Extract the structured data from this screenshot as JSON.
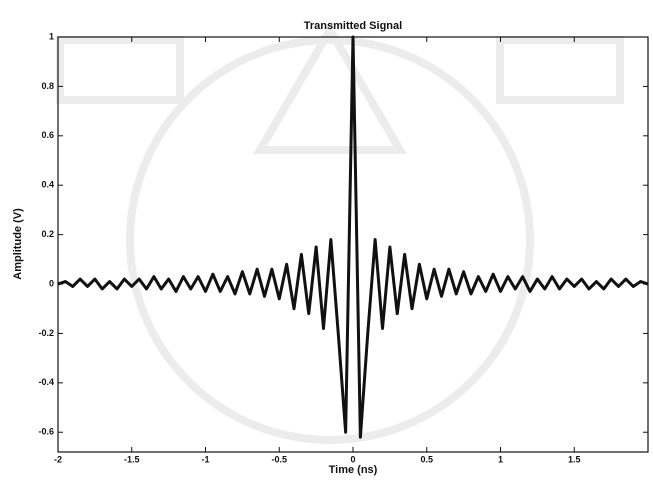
{
  "chart_data": {
    "type": "line",
    "title": "Transmitted Signal",
    "xlabel": "Time (ns)",
    "ylabel": "Amplitude (V)",
    "x": [
      -2,
      -1.95,
      -1.9,
      -1.85,
      -1.8,
      -1.75,
      -1.7,
      -1.65,
      -1.6,
      -1.55,
      -1.5,
      -1.45,
      -1.4,
      -1.35,
      -1.3,
      -1.25,
      -1.2,
      -1.15,
      -1.1,
      -1.05,
      -1,
      -0.95,
      -0.9,
      -0.85,
      -0.8,
      -0.75,
      -0.7,
      -0.65,
      -0.6,
      -0.55,
      -0.5,
      -0.45,
      -0.4,
      -0.35,
      -0.3,
      -0.25,
      -0.2,
      -0.15,
      -0.1,
      -0.05,
      0,
      0.05,
      0.1,
      0.15,
      0.2,
      0.25,
      0.3,
      0.35,
      0.4,
      0.45,
      0.5,
      0.55,
      0.6,
      0.65,
      0.7,
      0.75,
      0.8,
      0.85,
      0.9,
      0.95,
      1,
      1.05,
      1.1,
      1.15,
      1.2,
      1.25,
      1.3,
      1.35,
      1.4,
      1.45,
      1.5,
      1.55,
      1.6,
      1.65,
      1.7,
      1.75,
      1.8,
      1.85,
      1.9,
      1.95,
      2
    ],
    "values": [
      0,
      0.01,
      -0.01,
      0.02,
      -0.01,
      0.02,
      -0.02,
      0.01,
      -0.02,
      0.02,
      -0.01,
      0.02,
      -0.02,
      0.03,
      -0.02,
      0.02,
      -0.03,
      0.03,
      -0.02,
      0.03,
      -0.03,
      0.04,
      -0.03,
      0.03,
      -0.04,
      0.05,
      -0.04,
      0.06,
      -0.05,
      0.06,
      -0.06,
      0.08,
      -0.1,
      0.12,
      -0.12,
      0.15,
      -0.18,
      0.18,
      -0.2,
      -0.6,
      1,
      -0.62,
      -0.2,
      0.18,
      -0.18,
      0.15,
      -0.12,
      0.12,
      -0.1,
      0.08,
      -0.06,
      0.06,
      -0.05,
      0.06,
      -0.04,
      0.05,
      -0.04,
      0.03,
      -0.03,
      0.04,
      -0.03,
      0.03,
      -0.02,
      0.03,
      -0.03,
      0.02,
      -0.02,
      0.03,
      -0.02,
      0.02,
      -0.01,
      0.02,
      -0.02,
      0.01,
      -0.02,
      0.02,
      -0.01,
      0.02,
      -0.01,
      0.01,
      0
    ],
    "color": "#111111",
    "xlim": [
      -2,
      2
    ],
    "xticks": [
      -2,
      -1.5,
      -1,
      -0.5,
      0,
      0.5,
      1,
      1.5
    ],
    "ylim": [
      -0.68,
      1
    ],
    "yticks": [
      -0.6,
      -0.4,
      -0.2,
      0,
      0.2,
      0.4,
      0.6,
      0.8,
      1
    ]
  }
}
